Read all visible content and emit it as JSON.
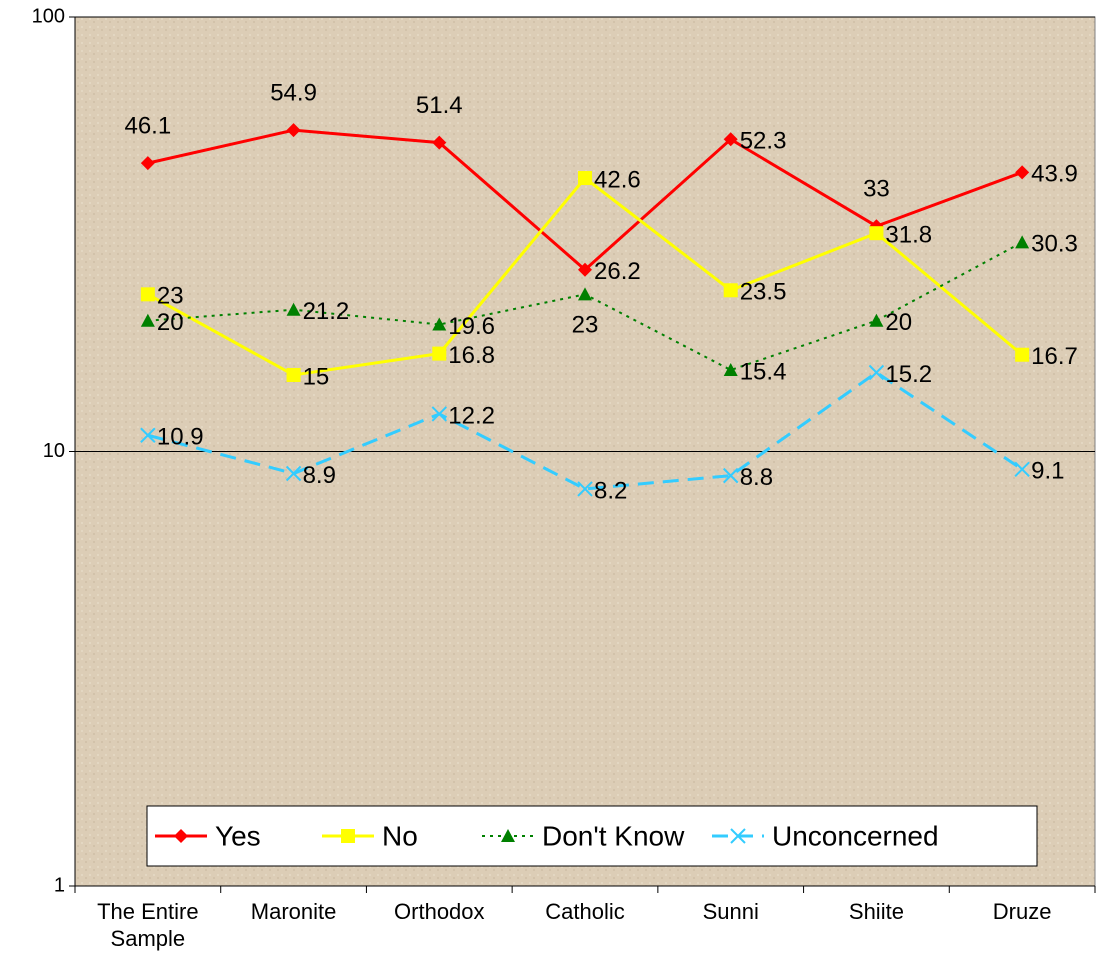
{
  "chart_data": {
    "type": "line",
    "categories": [
      "The Entire Sample",
      "Maronite",
      "Orthodox",
      "Catholic",
      "Sunni",
      "Shiite",
      "Druze"
    ],
    "series": [
      {
        "name": "Yes",
        "color": "#ff0000",
        "dash": "solid",
        "marker": "diamond",
        "values": [
          46.1,
          54.9,
          51.4,
          26.2,
          52.3,
          33,
          43.9
        ]
      },
      {
        "name": "No",
        "color": "#ffff00",
        "dash": "solid",
        "marker": "square",
        "values": [
          23,
          15,
          16.8,
          42.6,
          23.5,
          31.8,
          16.7
        ]
      },
      {
        "name": "Don't Know",
        "color": "#008000",
        "dash": "dotted",
        "marker": "triangle",
        "values": [
          20,
          21.2,
          19.6,
          23,
          15.4,
          20,
          30.3
        ]
      },
      {
        "name": "Unconcerned",
        "color": "#33ccff",
        "dash": "dashed",
        "marker": "x",
        "values": [
          10.9,
          8.9,
          12.2,
          8.2,
          8.8,
          15.2,
          9.1
        ]
      }
    ],
    "ylim": [
      1,
      100
    ],
    "yticks": [
      1,
      10,
      100
    ],
    "log_y": true,
    "grid": true,
    "legend": "bottom"
  }
}
